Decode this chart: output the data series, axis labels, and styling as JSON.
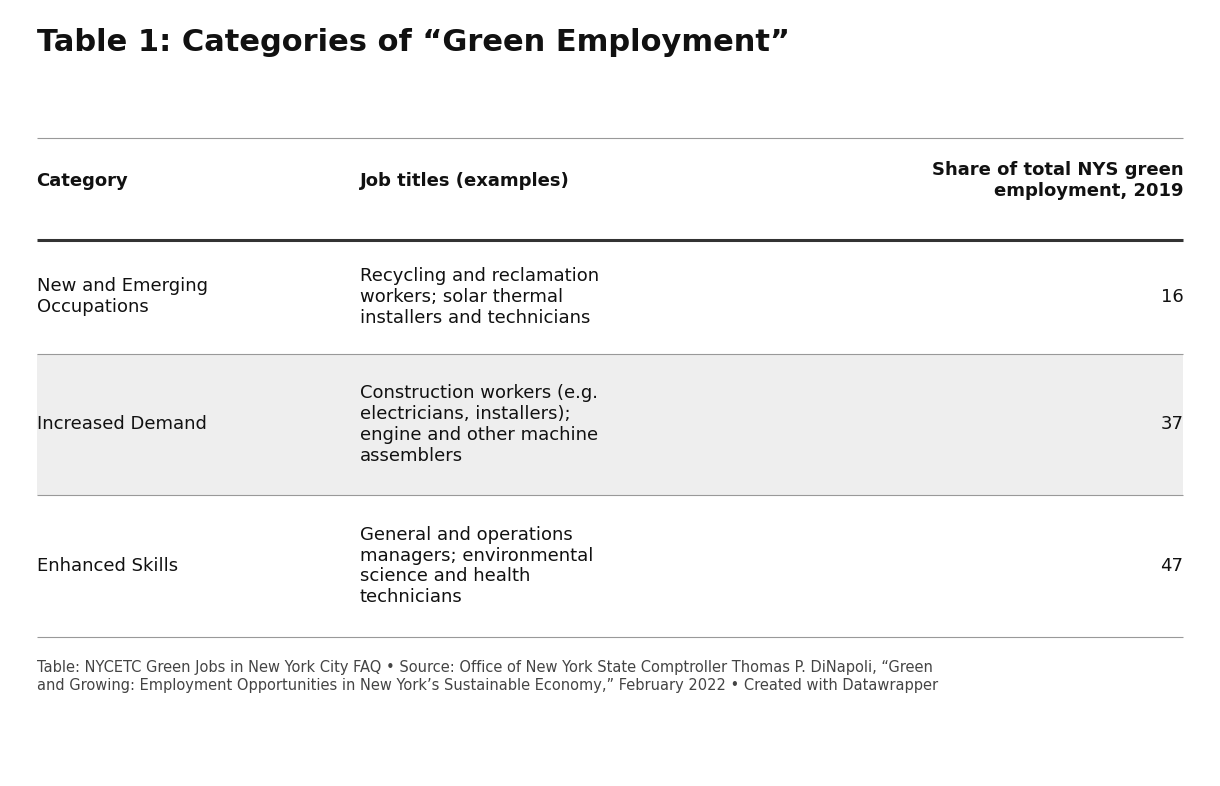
{
  "title": "Table 1: Categories of “Green Employment”",
  "title_fontsize": 22,
  "title_fontweight": "bold",
  "bg_color": "#ffffff",
  "col_headers": [
    "Category",
    "Job titles (examples)",
    "Share of total NYS green\nemployment, 2019"
  ],
  "col_header_fontsize": 13,
  "col_header_fontweight": "bold",
  "rows": [
    {
      "category": "New and Emerging\nOccupations",
      "job_titles": "Recycling and reclamation\nworkers; solar thermal\ninstallers and technicians",
      "share": "16",
      "bg": "#ffffff"
    },
    {
      "category": "Increased Demand",
      "job_titles": "Construction workers (e.g.\nelectricians, installers);\nengine and other machine\nassemblers",
      "share": "37",
      "bg": "#eeeeee"
    },
    {
      "category": "Enhanced Skills",
      "job_titles": "General and operations\nmanagers; environmental\nscience and health\ntechnicians",
      "share": "47",
      "bg": "#ffffff"
    }
  ],
  "footer_text": "Table: NYCETC Green Jobs in New York City FAQ • Source: Office of New York State Comptroller Thomas P. DiNapoli, “Green\nand Growing: Employment Opportunities in New York’s Sustainable Economy,” February 2022 • Created with Datawrapper",
  "footer_fontsize": 10.5,
  "cell_fontsize": 13,
  "divider_color": "#999999",
  "thick_divider_color": "#333333"
}
